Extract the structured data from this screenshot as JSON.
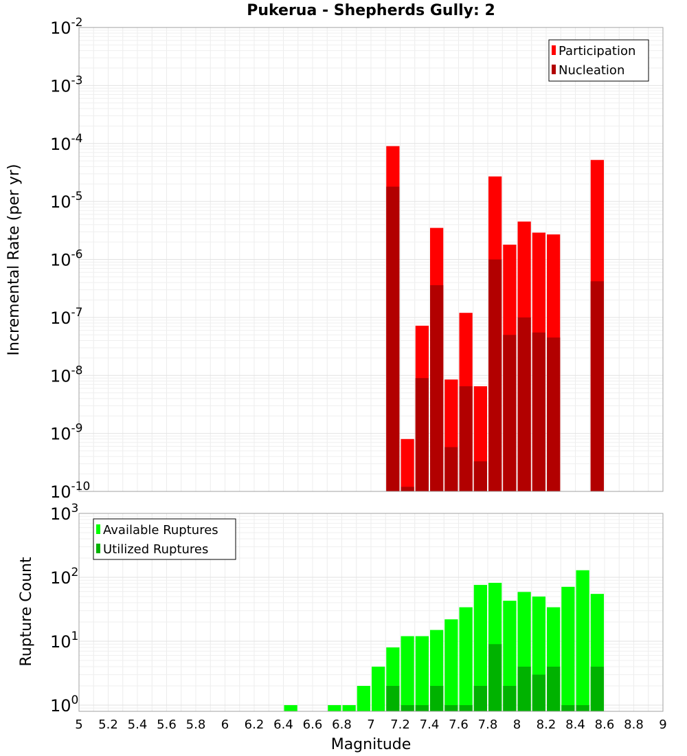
{
  "chart_data": [
    {
      "type": "bar",
      "title": "Pukerua - Shepherds Gully: 2",
      "xlabel": "",
      "ylabel": "Incremental Rate (per yr)",
      "yscale": "log",
      "ylim": [
        1e-10,
        0.01
      ],
      "xlim": [
        5,
        9
      ],
      "grid": true,
      "legend_position": "top-right",
      "y_tick_labels": [
        {
          "base": "10",
          "exp": "-10"
        },
        {
          "base": "10",
          "exp": "-9"
        },
        {
          "base": "10",
          "exp": "-8"
        },
        {
          "base": "10",
          "exp": "-7"
        },
        {
          "base": "10",
          "exp": "-6"
        },
        {
          "base": "10",
          "exp": "-5"
        },
        {
          "base": "10",
          "exp": "-4"
        },
        {
          "base": "10",
          "exp": "-3"
        },
        {
          "base": "10",
          "exp": "-2"
        }
      ],
      "bar_width": 0.1,
      "series": [
        {
          "name": "Participation",
          "color": "#ff0000",
          "points": [
            {
              "x": 7.15,
              "y": 9e-05
            },
            {
              "x": 7.25,
              "y": 8e-10
            },
            {
              "x": 7.35,
              "y": 7.2e-08
            },
            {
              "x": 7.45,
              "y": 3.5e-06
            },
            {
              "x": 7.55,
              "y": 8.5e-09
            },
            {
              "x": 7.65,
              "y": 1.2e-07
            },
            {
              "x": 7.75,
              "y": 6.5e-09
            },
            {
              "x": 7.85,
              "y": 2.7e-05
            },
            {
              "x": 7.95,
              "y": 1.8e-06
            },
            {
              "x": 8.05,
              "y": 4.5e-06
            },
            {
              "x": 8.15,
              "y": 2.9e-06
            },
            {
              "x": 8.25,
              "y": 2.7e-06
            },
            {
              "x": 8.55,
              "y": 5.2e-05
            }
          ]
        },
        {
          "name": "Nucleation",
          "color": "#b20000",
          "points": [
            {
              "x": 7.15,
              "y": 1.8e-05
            },
            {
              "x": 7.25,
              "y": 1.2e-10
            },
            {
              "x": 7.35,
              "y": 9e-09
            },
            {
              "x": 7.45,
              "y": 3.6e-07
            },
            {
              "x": 7.55,
              "y": 5.8e-10
            },
            {
              "x": 7.65,
              "y": 6.5e-09
            },
            {
              "x": 7.75,
              "y": 3.3e-10
            },
            {
              "x": 7.85,
              "y": 1e-06
            },
            {
              "x": 7.95,
              "y": 5e-08
            },
            {
              "x": 8.05,
              "y": 1e-07
            },
            {
              "x": 8.15,
              "y": 5.5e-08
            },
            {
              "x": 8.25,
              "y": 4.5e-08
            },
            {
              "x": 8.55,
              "y": 4.2e-07
            }
          ]
        }
      ]
    },
    {
      "type": "bar",
      "title": "",
      "xlabel": "Magnitude",
      "ylabel": "Rupture Count",
      "yscale": "log",
      "ylim": [
        0.8,
        1000
      ],
      "xlim": [
        5,
        9
      ],
      "grid": true,
      "legend_position": "top-left",
      "y_tick_labels": [
        {
          "base": "10",
          "exp": "0"
        },
        {
          "base": "10",
          "exp": "1"
        },
        {
          "base": "10",
          "exp": "2"
        },
        {
          "base": "10",
          "exp": "3"
        }
      ],
      "x_tick_labels": [
        "5",
        "5.2",
        "5.4",
        "5.6",
        "5.8",
        "6",
        "6.2",
        "6.4",
        "6.6",
        "6.8",
        "7",
        "7.2",
        "7.4",
        "7.6",
        "7.8",
        "8",
        "8.2",
        "8.4",
        "8.6",
        "8.8",
        "9"
      ],
      "bar_width": 0.1,
      "series": [
        {
          "name": "Available Ruptures",
          "color": "#00ff00",
          "points": [
            {
              "x": 6.45,
              "y": 1
            },
            {
              "x": 6.75,
              "y": 1
            },
            {
              "x": 6.85,
              "y": 1
            },
            {
              "x": 6.95,
              "y": 2
            },
            {
              "x": 7.05,
              "y": 4
            },
            {
              "x": 7.15,
              "y": 8
            },
            {
              "x": 7.25,
              "y": 12
            },
            {
              "x": 7.35,
              "y": 12
            },
            {
              "x": 7.45,
              "y": 15
            },
            {
              "x": 7.55,
              "y": 22
            },
            {
              "x": 7.65,
              "y": 34
            },
            {
              "x": 7.75,
              "y": 76
            },
            {
              "x": 7.85,
              "y": 82
            },
            {
              "x": 7.95,
              "y": 43
            },
            {
              "x": 8.05,
              "y": 59
            },
            {
              "x": 8.15,
              "y": 50
            },
            {
              "x": 8.25,
              "y": 34
            },
            {
              "x": 8.35,
              "y": 71
            },
            {
              "x": 8.45,
              "y": 129
            },
            {
              "x": 8.55,
              "y": 55
            }
          ]
        },
        {
          "name": "Utilized Ruptures",
          "color": "#00b200",
          "points": [
            {
              "x": 7.15,
              "y": 2
            },
            {
              "x": 7.25,
              "y": 1
            },
            {
              "x": 7.35,
              "y": 1
            },
            {
              "x": 7.45,
              "y": 2
            },
            {
              "x": 7.55,
              "y": 1
            },
            {
              "x": 7.65,
              "y": 1
            },
            {
              "x": 7.75,
              "y": 2
            },
            {
              "x": 7.85,
              "y": 9
            },
            {
              "x": 7.95,
              "y": 2
            },
            {
              "x": 8.05,
              "y": 4
            },
            {
              "x": 8.15,
              "y": 3
            },
            {
              "x": 8.25,
              "y": 4
            },
            {
              "x": 8.35,
              "y": 1
            },
            {
              "x": 8.45,
              "y": 1
            },
            {
              "x": 8.55,
              "y": 4
            }
          ]
        }
      ]
    }
  ]
}
